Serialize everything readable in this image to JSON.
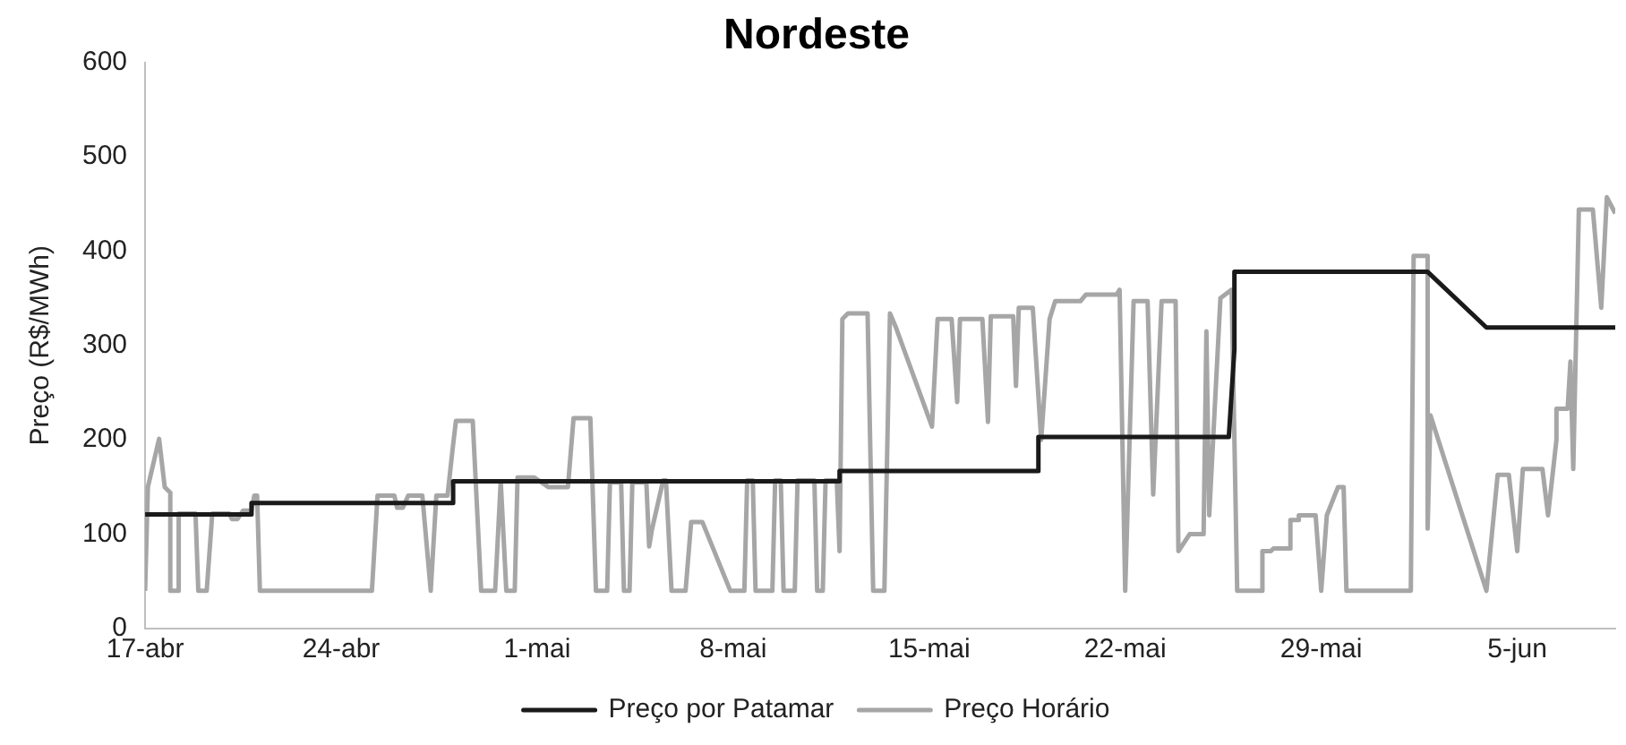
{
  "chart_data": {
    "type": "line",
    "title": "Nordeste",
    "ylabel": "Preço (R$/MWh)",
    "xlim": [
      "--04-17T00:00",
      "--06-08T12:00"
    ],
    "xticks": [
      {
        "value": "--04-17",
        "label": "17-abr"
      },
      {
        "value": "--04-24",
        "label": "24-abr"
      },
      {
        "value": "--05-01",
        "label": "1-mai"
      },
      {
        "value": "--05-08",
        "label": "8-mai"
      },
      {
        "value": "--05-15",
        "label": "15-mai"
      },
      {
        "value": "--05-22",
        "label": "22-mai"
      },
      {
        "value": "--05-29",
        "label": "29-mai"
      },
      {
        "value": "--06-05",
        "label": "5-jun"
      }
    ],
    "ylim": [
      0,
      600
    ],
    "yticks": [
      0,
      100,
      200,
      300,
      400,
      500,
      600
    ],
    "grid": false,
    "legend": "bottom",
    "marker": "none",
    "line_style": "solid",
    "series": [
      {
        "name": "Preço por Patamar",
        "color": "#1a1a1a",
        "x": [
          "--04-17T00:00",
          "--04-20T19:12",
          "--04-20T19:12",
          "--04-28T00:00",
          "--04-28T00:00",
          "--05-11T19:12",
          "--05-11T19:12",
          "--05-18T21:36",
          "--05-18T21:36",
          "--05-25T16:48",
          "--05-25T21:36",
          "--05-25T21:36",
          "--06-01T19:12",
          "--06-03T21:36",
          "--06-08T12:00"
        ],
        "values": [
          121,
          121,
          133,
          133,
          156,
          156,
          167,
          167,
          203,
          203,
          296,
          378,
          378,
          319,
          319
        ]
      },
      {
        "name": "Preço Horário",
        "color": "#a6a6a6",
        "x": [
          "--04-17T00:00",
          "--04-17T02:24",
          "--04-17T12:00",
          "--04-17T16:48",
          "--04-17T21:36",
          "--04-17T21:36",
          "--04-18T04:48",
          "--04-18T04:48",
          "--04-18T19:12",
          "--04-18T21:36",
          "--04-19T04:48",
          "--04-19T09:36",
          "--04-20T00:00",
          "--04-20T02:24",
          "--04-20T07:12",
          "--04-20T12:00",
          "--04-20T19:12",
          "--04-20T21:36",
          "--04-21T00:00",
          "--04-21T02:24",
          "--04-25T02:24",
          "--04-25T07:12",
          "--04-25T21:36",
          "--04-26T00:00",
          "--04-26T04:48",
          "--04-26T09:36",
          "--04-26T21:36",
          "--04-27T04:48",
          "--04-27T09:36",
          "--04-27T19:12",
          "--04-28T00:00",
          "--04-28T02:24",
          "--04-28T16:48",
          "--04-29T00:00",
          "--04-29T12:00",
          "--04-29T16:48",
          "--04-29T21:36",
          "--04-30T04:48",
          "--04-30T07:12",
          "--04-30T21:36",
          "--05-01T09:36",
          "--05-02T02:24",
          "--05-02T07:12",
          "--05-02T21:36",
          "--05-03T02:24",
          "--05-03T12:00",
          "--05-03T14:24",
          "--05-04T00:00",
          "--05-04T02:24",
          "--05-04T07:12",
          "--05-04T09:36",
          "--05-04T21:36",
          "--05-05T00:00",
          "--05-05T02:24",
          "--05-05T12:00",
          "--05-05T14:24",
          "--05-05T19:12",
          "--05-06T07:12",
          "--05-06T12:00",
          "--05-06T21:36",
          "--05-07T21:36",
          "--05-08T09:36",
          "--05-08T12:00",
          "--05-08T16:48",
          "--05-08T19:12",
          "--05-09T09:36",
          "--05-09T12:00",
          "--05-09T16:48",
          "--05-09T19:12",
          "--05-10T04:48",
          "--05-10T07:12",
          "--05-10T21:36",
          "--05-11T00:00",
          "--05-11T04:48",
          "--05-11T07:12",
          "--05-11T16:48",
          "--05-11T19:12",
          "--05-11T21:36",
          "--05-12T02:24",
          "--05-12T19:12",
          "--05-13T00:00",
          "--05-13T09:36",
          "--05-13T14:24",
          "--05-13T19:12",
          "--05-15T02:24",
          "--05-15T07:12",
          "--05-15T19:12",
          "--05-16T00:00",
          "--05-16T02:24",
          "--05-16T21:36",
          "--05-17T02:24",
          "--05-17T04:48",
          "--05-18T00:00",
          "--05-18T02:24",
          "--05-18T04:48",
          "--05-18T16:48",
          "--05-19T00:00",
          "--05-19T07:12",
          "--05-19T12:00",
          "--05-20T09:36",
          "--05-20T14:24",
          "--05-21T16:48",
          "--05-21T19:12",
          "--05-22T00:00",
          "--05-22T07:12",
          "--05-22T19:12",
          "--05-23T00:00",
          "--05-23T07:12",
          "--05-23T19:12",
          "--05-23T21:36",
          "--05-24T07:12",
          "--05-24T19:12",
          "--05-24T21:36",
          "--05-25T00:00",
          "--05-25T09:36",
          "--05-25T19:12",
          "--05-26T00:00",
          "--05-26T21:36",
          "--05-26T21:36",
          "--05-27T04:48",
          "--05-27T07:12",
          "--05-27T21:36",
          "--05-27T21:36",
          "--05-28T04:48",
          "--05-28T04:48",
          "--05-28T19:12",
          "--05-29T00:00",
          "--05-29T04:48",
          "--05-29T14:24",
          "--05-29T19:12",
          "--05-29T21:36",
          "--06-01T04:48",
          "--06-01T07:12",
          "--06-01T19:12",
          "--06-01T19:12",
          "--06-01T21:36",
          "--06-03T21:36",
          "--06-04T07:12",
          "--06-04T16:48",
          "--06-05T00:00",
          "--06-05T04:48",
          "--06-05T21:36",
          "--06-06T02:24",
          "--06-06T09:36",
          "--06-06T09:36",
          "--06-06T19:12",
          "--06-06T21:36",
          "--06-07T00:00",
          "--06-07T04:48",
          "--06-07T16:48",
          "--06-08T00:00",
          "--06-08T04:48",
          "--06-08T12:00"
        ],
        "values": [
          40,
          150,
          201,
          150,
          144,
          40,
          40,
          122,
          122,
          40,
          40,
          122,
          122,
          116,
          116,
          125,
          125,
          141,
          141,
          40,
          40,
          141,
          141,
          128,
          128,
          141,
          141,
          40,
          141,
          141,
          195,
          220,
          220,
          40,
          40,
          156,
          40,
          40,
          160,
          160,
          150,
          150,
          223,
          223,
          40,
          40,
          155,
          155,
          40,
          40,
          155,
          155,
          87,
          105,
          157,
          157,
          40,
          40,
          113,
          113,
          40,
          40,
          157,
          157,
          40,
          40,
          157,
          157,
          40,
          40,
          157,
          157,
          40,
          40,
          157,
          157,
          82,
          328,
          334,
          334,
          40,
          40,
          334,
          320,
          214,
          328,
          328,
          240,
          328,
          328,
          219,
          331,
          331,
          257,
          340,
          340,
          200,
          328,
          347,
          347,
          354,
          354,
          359,
          40,
          347,
          347,
          142,
          347,
          347,
          82,
          100,
          100,
          315,
          120,
          350,
          359,
          40,
          40,
          82,
          82,
          85,
          85,
          115,
          115,
          120,
          120,
          40,
          120,
          150,
          150,
          40,
          40,
          395,
          395,
          106,
          226,
          40,
          163,
          163,
          82,
          169,
          169,
          120,
          200,
          233,
          233,
          283,
          169,
          444,
          444,
          340,
          457,
          440
        ]
      }
    ]
  }
}
